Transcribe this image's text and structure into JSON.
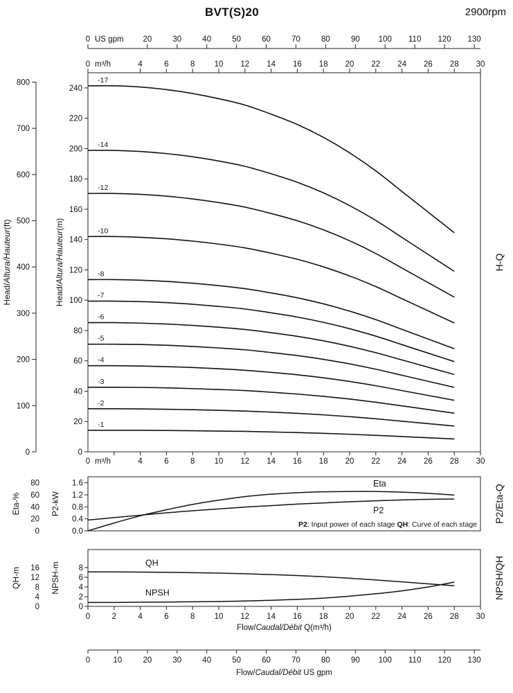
{
  "header": {
    "title": "BVT(S)20",
    "rpm": "2900rpm"
  },
  "labels": {
    "us_gpm_unit": "US gpm",
    "m3h_unit": "m³/h",
    "head_ft": {
      "pre": "Head/",
      "italic": "Altura/Hauteur",
      "post": "(ft)"
    },
    "head_m": {
      "pre": "Head/",
      "italic": "Altura/Hauteur",
      "post": "(m)"
    },
    "flow_m3h": {
      "pre": "Flow/",
      "italic": "Caudal/Débit",
      "post": " Q(m³/h)"
    },
    "flow_gpm": {
      "pre": "Flow/",
      "italic": "Caudal/Débit",
      "post": "  US gpm"
    },
    "section_hq": "H-Q",
    "section_p2eta": "P2/Eta-Q",
    "section_npshqh": "NPSH/QH",
    "eta_axis": "Eta-%",
    "p2_axis": "P2-kW",
    "qh_axis": "QH-m",
    "npsh_axis": "NPSH-m",
    "note_parts": [
      {
        "text": "P2",
        "bold": true
      },
      {
        "text": ": Input power of each stage ",
        "bold": false
      },
      {
        "text": "QH",
        "bold": true
      },
      {
        "text": ": Curve of each stage",
        "bold": false
      }
    ]
  },
  "chart_data": [
    {
      "id": "hq",
      "type": "line",
      "title": "H-Q",
      "xlabel": "Flow Q (m³/h)",
      "ylabel": "Head (m)",
      "xlim": [
        0,
        30
      ],
      "ylim": [
        0,
        250
      ],
      "x_ticks_m3h": [
        0,
        4,
        6,
        8,
        10,
        12,
        14,
        16,
        18,
        20,
        22,
        24,
        26,
        28,
        30
      ],
      "x_ticks_gpm": [
        0,
        20,
        30,
        40,
        50,
        60,
        70,
        80,
        90,
        100,
        110,
        120,
        130
      ],
      "y_ticks_m": [
        0,
        20,
        40,
        60,
        80,
        100,
        120,
        140,
        160,
        180,
        200,
        220,
        240
      ],
      "y_ticks_ft": [
        0,
        100,
        200,
        300,
        400,
        500,
        600,
        700,
        800
      ],
      "x": [
        0,
        2,
        4,
        6,
        8,
        10,
        12,
        14,
        16,
        18,
        20,
        22,
        24,
        26,
        28
      ],
      "series": [
        {
          "name": "-17",
          "values": [
            241.4,
            241.4,
            240.6,
            238.9,
            236.3,
            232.9,
            228.7,
            222.7,
            215.9,
            207.4,
            197.2,
            185.3,
            171.7,
            158.1,
            144.5
          ]
        },
        {
          "name": "-14",
          "values": [
            198.8,
            198.8,
            198.1,
            196.7,
            194.6,
            191.8,
            188.3,
            183.4,
            177.8,
            170.8,
            162.4,
            152.6,
            141.4,
            130.2,
            119.0
          ]
        },
        {
          "name": "-12",
          "values": [
            170.4,
            170.4,
            169.8,
            168.6,
            166.8,
            164.4,
            161.4,
            157.2,
            152.4,
            146.4,
            139.2,
            130.8,
            121.2,
            111.6,
            102.0
          ]
        },
        {
          "name": "-10",
          "values": [
            142.0,
            142.0,
            141.5,
            140.5,
            139.0,
            137.0,
            134.5,
            131.0,
            127.0,
            122.0,
            116.0,
            109.0,
            101.0,
            93.0,
            85.0
          ]
        },
        {
          "name": "-8",
          "values": [
            113.6,
            113.6,
            113.2,
            112.4,
            111.2,
            109.6,
            107.6,
            104.8,
            101.6,
            97.6,
            92.8,
            87.2,
            80.8,
            74.4,
            68.0
          ]
        },
        {
          "name": "-7",
          "values": [
            99.4,
            99.4,
            99.1,
            98.4,
            97.3,
            95.9,
            94.2,
            91.7,
            88.9,
            85.4,
            81.2,
            76.3,
            70.7,
            65.1,
            59.5
          ]
        },
        {
          "name": "-6",
          "values": [
            85.2,
            85.2,
            84.9,
            84.3,
            83.4,
            82.2,
            80.7,
            78.6,
            76.2,
            73.2,
            69.6,
            65.4,
            60.6,
            55.8,
            51.0
          ]
        },
        {
          "name": "-5",
          "values": [
            71.0,
            71.0,
            70.8,
            70.3,
            69.5,
            68.5,
            67.3,
            65.5,
            63.5,
            61.0,
            58.0,
            54.5,
            50.5,
            46.5,
            42.5
          ]
        },
        {
          "name": "-4",
          "values": [
            56.8,
            56.8,
            56.6,
            56.2,
            55.6,
            54.8,
            53.8,
            52.4,
            50.8,
            48.8,
            46.4,
            43.6,
            40.4,
            37.2,
            34.0
          ]
        },
        {
          "name": "-3",
          "values": [
            42.6,
            42.6,
            42.5,
            42.2,
            41.7,
            41.1,
            40.4,
            39.3,
            38.1,
            36.6,
            34.8,
            32.7,
            30.3,
            27.9,
            25.5
          ]
        },
        {
          "name": "-2",
          "values": [
            28.4,
            28.4,
            28.3,
            28.1,
            27.8,
            27.4,
            26.9,
            26.2,
            25.4,
            24.4,
            23.2,
            21.8,
            20.2,
            18.6,
            17.0
          ]
        },
        {
          "name": "-1",
          "values": [
            14.2,
            14.2,
            14.2,
            14.1,
            13.9,
            13.7,
            13.5,
            13.1,
            12.7,
            12.2,
            11.6,
            10.9,
            10.1,
            9.3,
            8.5
          ]
        }
      ]
    },
    {
      "id": "p2eta",
      "type": "line",
      "title": "P2/Eta-Q",
      "xlim": [
        0,
        30
      ],
      "eta_ylim": [
        0,
        90
      ],
      "p2_ylim": [
        0,
        1.8
      ],
      "eta_ticks": [
        0,
        20,
        40,
        60,
        80
      ],
      "p2_ticks": [
        "0.0",
        "0.4",
        "0.8",
        "1.2",
        "1.6"
      ],
      "x": [
        0,
        2,
        4,
        6,
        8,
        10,
        12,
        14,
        16,
        18,
        20,
        22,
        24,
        26,
        28
      ],
      "series": [
        {
          "name": "Eta",
          "axis": "eta",
          "values": [
            0,
            13,
            25,
            35,
            44,
            51,
            57,
            61,
            63.5,
            65,
            65.5,
            65.5,
            64.5,
            62.5,
            59.5
          ]
        },
        {
          "name": "P2",
          "axis": "p2",
          "values": [
            0.36,
            0.44,
            0.52,
            0.6,
            0.67,
            0.73,
            0.79,
            0.84,
            0.89,
            0.93,
            0.97,
            1.0,
            1.03,
            1.05,
            1.06
          ]
        }
      ]
    },
    {
      "id": "npsh-qh",
      "type": "line",
      "title": "NPSH/QH",
      "xlim": [
        0,
        30
      ],
      "qh_ylim": [
        0,
        23
      ],
      "npsh_ylim": [
        0,
        11.5
      ],
      "x_ticks": [
        0,
        2,
        4,
        6,
        8,
        10,
        12,
        14,
        16,
        18,
        20,
        22,
        24,
        26,
        28,
        30
      ],
      "x_ticks_gpm": [
        0,
        10,
        20,
        30,
        40,
        50,
        60,
        70,
        80,
        90,
        100,
        110,
        120,
        130
      ],
      "qh_ticks": [
        0,
        4,
        8,
        12,
        16
      ],
      "npsh_ticks": [
        0,
        2,
        4,
        6,
        8
      ],
      "x": [
        0,
        2,
        4,
        6,
        8,
        10,
        12,
        14,
        16,
        18,
        20,
        22,
        24,
        26,
        28
      ],
      "series": [
        {
          "name": "QH",
          "axis": "qh",
          "values": [
            14.2,
            14.2,
            14.15,
            14.05,
            13.9,
            13.7,
            13.45,
            13.1,
            12.7,
            12.2,
            11.6,
            10.9,
            10.1,
            9.3,
            8.5
          ]
        },
        {
          "name": "NPSH",
          "axis": "npsh",
          "values": [
            0.8,
            0.8,
            0.85,
            0.9,
            0.95,
            1.0,
            1.1,
            1.25,
            1.45,
            1.7,
            2.1,
            2.6,
            3.2,
            4.0,
            5.0
          ]
        }
      ]
    }
  ]
}
